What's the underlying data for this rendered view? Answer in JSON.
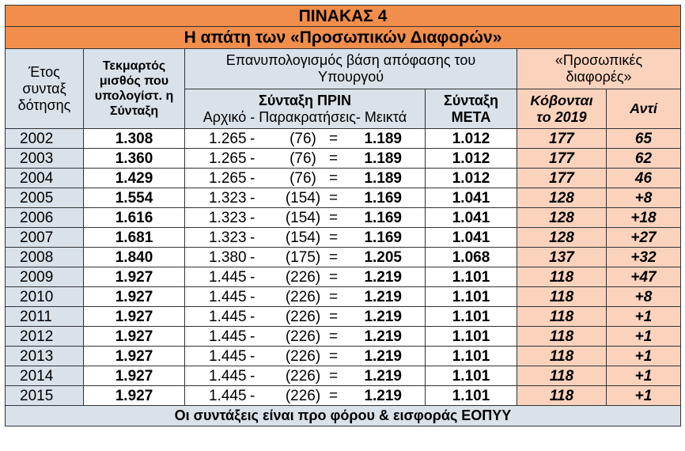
{
  "title": "ΠΙΝΑΚΑΣ 4",
  "subtitle": "Η απάτη των «Προσωπικών Διαφορών»",
  "headers": {
    "year_line1": "Έτος",
    "year_line2": "συνταξ",
    "year_line3": "δότησης",
    "salary": "Τεκμαρτός μισθός που υπολογίστ. η Σύνταξη",
    "recalc": "Επανυπολογισμός βάση απόφασης  του Υπουργού",
    "before_title": "Σύνταξη ΠΡΙΝ",
    "before_sub": "Αρχικό - Παρακρατήσεις- Μεικτά",
    "after": "Σύνταξη ΜΕΤΑ",
    "personal": "«Προσωπικές διαφορές»",
    "cut": "Κόβονται το 2019",
    "instead": "Αντί"
  },
  "rows": [
    {
      "year": "2002",
      "salary": "1.308",
      "initial": "1.265",
      "minus": "-",
      "withheld": "(76)",
      "eq": "=",
      "gross": "1.189",
      "after": "1.012",
      "cut": "177",
      "instead": "65"
    },
    {
      "year": "2003",
      "salary": "1.360",
      "initial": "1.265",
      "minus": "-",
      "withheld": "(76)",
      "eq": "=",
      "gross": "1.189",
      "after": "1.012",
      "cut": "177",
      "instead": "62"
    },
    {
      "year": "2004",
      "salary": "1.429",
      "initial": "1.265",
      "minus": "-",
      "withheld": "(76)",
      "eq": "=",
      "gross": "1.189",
      "after": "1.012",
      "cut": "177",
      "instead": "46"
    },
    {
      "year": "2005",
      "salary": "1.554",
      "initial": "1.323",
      "minus": "-",
      "withheld": "(154)",
      "eq": "=",
      "gross": "1.169",
      "after": "1.041",
      "cut": "128",
      "instead": "+8"
    },
    {
      "year": "2006",
      "salary": "1.616",
      "initial": "1.323",
      "minus": "-",
      "withheld": "(154)",
      "eq": "=",
      "gross": "1.169",
      "after": "1.041",
      "cut": "128",
      "instead": "+18"
    },
    {
      "year": "2007",
      "salary": "1.681",
      "initial": "1.323",
      "minus": "-",
      "withheld": "(154)",
      "eq": "=",
      "gross": "1.169",
      "after": "1.041",
      "cut": "128",
      "instead": "+27"
    },
    {
      "year": "2008",
      "salary": "1.840",
      "initial": "1.380",
      "minus": "-",
      "withheld": "(175)",
      "eq": "=",
      "gross": "1.205",
      "after": "1.068",
      "cut": "137",
      "instead": "+32"
    },
    {
      "year": "2009",
      "salary": "1.927",
      "initial": "1.445",
      "minus": "-",
      "withheld": "(226)",
      "eq": "=",
      "gross": "1.219",
      "after": "1.101",
      "cut": "118",
      "instead": "+47"
    },
    {
      "year": "2010",
      "salary": "1.927",
      "initial": "1.445",
      "minus": "-",
      "withheld": "(226)",
      "eq": "=",
      "gross": "1.219",
      "after": "1.101",
      "cut": "118",
      "instead": "+8"
    },
    {
      "year": "2011",
      "salary": "1.927",
      "initial": "1.445",
      "minus": "-",
      "withheld": "(226)",
      "eq": "=",
      "gross": "1.219",
      "after": "1.101",
      "cut": "118",
      "instead": "+1"
    },
    {
      "year": "2012",
      "salary": "1.927",
      "initial": "1.445",
      "minus": "-",
      "withheld": "(226)",
      "eq": "=",
      "gross": "1.219",
      "after": "1.101",
      "cut": "118",
      "instead": "+1"
    },
    {
      "year": "2013",
      "salary": "1.927",
      "initial": "1.445",
      "minus": "-",
      "withheld": "(226)",
      "eq": "=",
      "gross": "1.219",
      "after": "1.101",
      "cut": "118",
      "instead": "+1"
    },
    {
      "year": "2014",
      "salary": "1.927",
      "initial": "1.445",
      "minus": "-",
      "withheld": "(226)",
      "eq": "=",
      "gross": "1.219",
      "after": "1.101",
      "cut": "118",
      "instead": "+1"
    },
    {
      "year": "2015",
      "salary": "1.927",
      "initial": "1.445",
      "minus": "-",
      "withheld": "(226)",
      "eq": "=",
      "gross": "1.219",
      "after": "1.101",
      "cut": "118",
      "instead": "+1"
    }
  ],
  "footer": "Οι συντάξεις είναι προ φόρου & εισφοράς ΕΟΠΥΥ",
  "colors": {
    "orange": "#f28e4c",
    "blue_gray": "#d9e2e9",
    "pink": "#fbd3bd"
  }
}
